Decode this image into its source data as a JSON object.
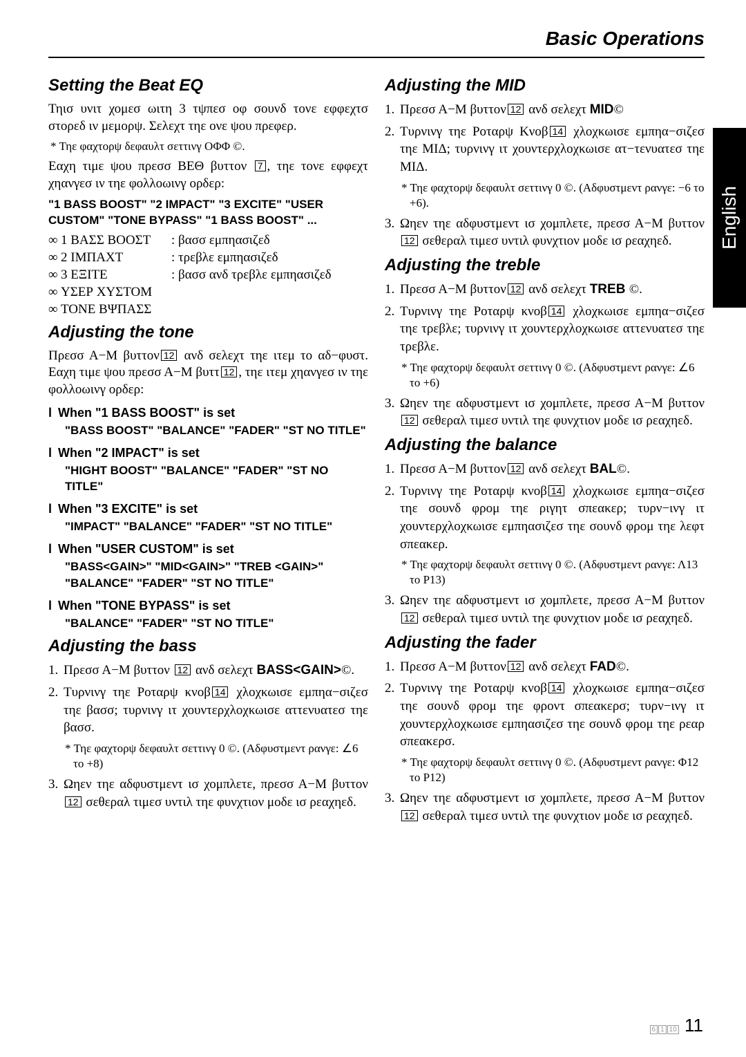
{
  "header": "Basic Operations",
  "sidetab": "English",
  "left": {
    "s1": {
      "title": "Setting the Beat EQ",
      "p1": "Τηισ υνιτ χομεσ ωιτη 3 τψπεσ οφ σουνδ τονε εφφεχτσ στορεδ ιν μεμορψ. Σελεχτ τηε ονε ψου πρεφερ.",
      "note1": "* Τηε φαχτορψ δεφαυλτ σεττινγ ΟΦΦ ©.",
      "p2a": "Εαχη τιμε ψου πρεσσ ΒΕΘ βυττον ",
      "p2b": ", τηε τονε εφφεχτ χηανγεσ ιν τηε φολλοωινγ ορδερ:",
      "seq": "\"1 BASS BOOST\"    \"2 IMPACT\"    \"3 EXCITE\"    \"USER CUSTOM\"    \"TONE BYPASS\"    \"1 BASS BOOST\" ...",
      "items": [
        {
          "l": "1 ΒΑΣΣ ΒΟΟΣΤ",
          "d": ": βασσ εμπηασιζεδ"
        },
        {
          "l": "2 ΙΜΠΑΧΤ",
          "d": ": τρεβλε εμπηασιζεδ"
        },
        {
          "l": "3 ΕΞΙΤΕ",
          "d": ": βασσ ανδ τρεβλε εμπηασιζεδ"
        },
        {
          "l": "ΥΣΕΡ ΧΥΣΤΟΜ",
          "d": ""
        },
        {
          "l": "ΤΟΝΕ ΒΨΠΑΣΣ",
          "d": ""
        }
      ]
    },
    "s2": {
      "title": "Adjusting the tone",
      "p1a": "Πρεσσ Α−Μ βυττον",
      "p1b": " ανδ σελεχτ τηε ιτεμ το αδ−φυστ. Εαχη τιμε ψου πρεσσ Α−Μ βυττ",
      "p1c": ", τηε ιτεμ χηανγεσ ιν τηε φολλοωινγ ορδερ:",
      "groups": [
        {
          "h": "When \"1 BASS BOOST\" is set",
          "s": "\"BASS BOOST\"    \"BALANCE\"    \"FADER\"    \"ST NO TITLE\""
        },
        {
          "h": "When \"2 IMPACT\" is set",
          "s": "\"HIGHT  BOOST\"      \"BALANCE\"    \"FADER\"    \"ST NO TITLE\""
        },
        {
          "h": "When \"3 EXCITE\" is set",
          "s": "\"IMPACT\"    \"BALANCE\"    \"FADER\"    \"ST NO TITLE\""
        },
        {
          "h": "When \"USER CUSTOM\" is set",
          "s": "\"BASS<GAIN>\"    \"MID<GAIN>\"    \"TREB <GAIN>\"    \"BALANCE\"    \"FADER\"    \"ST NO TITLE\""
        },
        {
          "h": "When \"TONE BYPASS\" is set",
          "s": "\"BALANCE\"    \"FADER\"    \"ST NO TITLE\""
        }
      ]
    },
    "s3": {
      "title": "Adjusting the bass",
      "step1a": "Πρεσσ   Α−Μ   βυττον ",
      "step1b": "   ανδ   σελεχτ ",
      "step1c": "BASS<GAIN>",
      "step1d": "©.",
      "step2a": "Τυρνινγ τηε Ροταρψ κνοβ",
      "step2b": " χλοχκωισε εμπηα−σιζεσ τηε βασσ; τυρνινγ ιτ χουντερχλοχκωισε αττενυατεσ τηε βασσ.",
      "note": "* Τηε φαχτορψ δεφαυλτ σεττινγ 0 ©. (Αδφυστμεντ ρανγε: ∠6 το +8)",
      "step3a": "Ωηεν τηε αδφυστμεντ ισ χομπλετε, πρεσσ Α−Μ βυττον",
      "step3b": " σεθεραλ τιμεσ υντιλ τηε φυνχτιον μοδε ισ ρεαχηεδ."
    }
  },
  "right": {
    "mid": {
      "title": "Adjusting the MID",
      "s1a": "Πρεσσ Α−Μ βυττον",
      "s1b": " ανδ σελεχτ ",
      "s1c": "MID<GAIN>",
      "s1d": "©",
      "s2a": "Τυρνινγ τηε Ροταρψ Κνοβ",
      "s2b": " χλοχκωισε εμπηα−σιζεσ τηε ΜΙΔ; τυρνινγ ιτ χουντερχλοχκωισε ατ−τενυατεσ τηε ΜΙΔ.",
      "note": "* Τηε φαχτορψ δεφαυλτ σεττινγ 0 ©. (Αδφυστμεντ ρανγε: −6 το +6).",
      "s3a": "Ωηεν τηε αδφυστμεντ ισ χομπλετε, πρεσσ Α−Μ βυττον",
      "s3b": " σεθεραλ τιμεσ υντιλ φυνχτιον μοδε ισ ρεαχηεδ."
    },
    "treb": {
      "title": "Adjusting the treble",
      "s1a": "Πρεσσ  Α−Μ  βυττον",
      "s1b": "  ανδ  σελεχτ ",
      "s1c": "TREB <GAIN>",
      "s1d": "©.",
      "s2a": "Τυρνινγ τηε Ροταρψ κνοβ",
      "s2b": " χλοχκωισε εμπηα−σιζεσ τηε  τρεβλε; τυρνινγ ιτ χουντερχλοχκωισε αττενυατεσ τηε τρεβλε.",
      "note": "* Τηε φαχτορψ δεφαυλτ σεττινγ 0 ©. (Αδφυστμεντ ρανγε: ∠6 το +6)",
      "s3a": "Ωηεν τηε αδφυστμεντ ισ χομπλετε, πρεσσ Α−Μ βυττον",
      "s3b": " σεθεραλ τιμεσ υντιλ τηε φυνχτιον μοδε ισ ρεαχηεδ."
    },
    "bal": {
      "title": "Adjusting the balance",
      "s1a": "Πρεσσ Α−Μ βυττον",
      "s1b": " ανδ σελεχτ ",
      "s1c": "BAL",
      "s1d": "©.",
      "s2a": "Τυρνινγ τηε Ροταρψ κνοβ",
      "s2b": " χλοχκωισε εμπηα−σιζεσ τηε σουνδ φρομ τηε ριγητ σπεακερ; τυρν−ινγ ιτ χουντερχλοχκωισε εμπηασιζεσ τηε σουνδ φρομ τηε λεφτ σπεακερ.",
      "note": "* Τηε φαχτορψ δεφαυλτ σεττινγ 0 ©. (Αδφυστμεντ ρανγε: Λ13 το Ρ13)",
      "s3a": "Ωηεν τηε αδφυστμεντ ισ χομπλετε, πρεσσ Α−Μ βυττον",
      "s3b": " σεθεραλ τιμεσ υντιλ τηε φυνχτιον μοδε ισ ρεαχηεδ."
    },
    "fad": {
      "title": "Adjusting the fader",
      "s1a": "Πρεσσ Α−Μ βυττον",
      "s1b": " ανδ σελεχτ ",
      "s1c": "FAD",
      "s1d": "©.",
      "s2a": "Τυρνινγ τηε Ροταρψ κνοβ",
      "s2b": " χλοχκωισε εμπηα−σιζεσ τηε σουνδ φρομ τηε φροντ σπεακερσ; τυρν−ινγ ιτ χουντερχλοχκωισε εμπηασιζεσ τηε σουνδ φρομ τηε ρεαρ σπεακερσ.",
      "note": "* Τηε φαχτορψ δεφαυλτ σεττινγ 0 ©. (Αδφυστμεντ ρανγε: Φ12 το Ρ12)",
      "s3a": "Ωηεν τηε αδφυστμεντ ισ χομπλετε, πρεσσ Α−Μ βυττον",
      "s3b": " σεθεραλ τιμεσ υντιλ τηε φυνχτιον μοδε ισ ρεαχηεδ."
    }
  },
  "boxes": {
    "b7": "7",
    "b12": "12",
    "b14": "14"
  },
  "page": "11",
  "small": [
    "6",
    "1",
    "10"
  ]
}
